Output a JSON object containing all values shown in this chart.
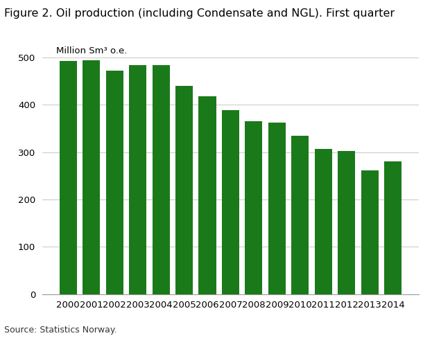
{
  "title": "Figure 2. Oil production (including Condensate and NGL). First quarter",
  "ylabel": "Million Sm³ o.e.",
  "source": "Source: Statistics Norway.",
  "years": [
    2000,
    2001,
    2002,
    2003,
    2004,
    2005,
    2006,
    2007,
    2008,
    2009,
    2010,
    2011,
    2012,
    2013,
    2014
  ],
  "values": [
    492,
    494,
    472,
    484,
    484,
    440,
    418,
    389,
    365,
    362,
    334,
    307,
    302,
    261,
    280
  ],
  "bar_color": "#1a7a1a",
  "ylim": [
    0,
    500
  ],
  "yticks": [
    0,
    100,
    200,
    300,
    400,
    500
  ],
  "background_color": "#ffffff",
  "grid_color": "#cccccc",
  "title_fontsize": 11.5,
  "label_fontsize": 9.5,
  "tick_fontsize": 9.5,
  "source_fontsize": 9
}
